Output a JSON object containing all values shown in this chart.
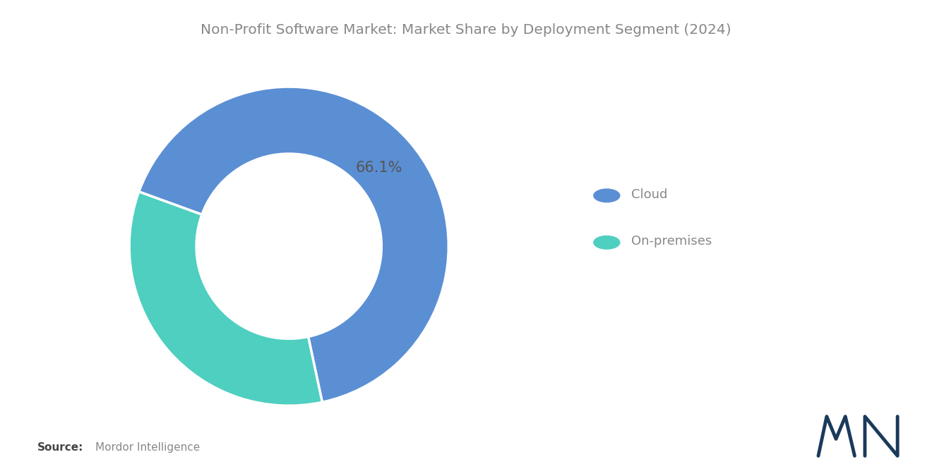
{
  "title": "Non-Profit Software Market: Market Share by Deployment Segment (2024)",
  "segments": [
    "Cloud",
    "On-premises"
  ],
  "values": [
    66.1,
    33.9
  ],
  "colors": [
    "#5B8FD4",
    "#4ECFC0"
  ],
  "label_text": "66.1%",
  "label_color": "#555555",
  "source_bold": "Source:",
  "source_text": "Mordor Intelligence",
  "background_color": "#ffffff",
  "title_color": "#888888",
  "legend_text_color": "#888888",
  "title_fontsize": 14.5,
  "legend_fontsize": 13,
  "label_fontsize": 15,
  "donut_width": 0.42,
  "start_angle": 160
}
